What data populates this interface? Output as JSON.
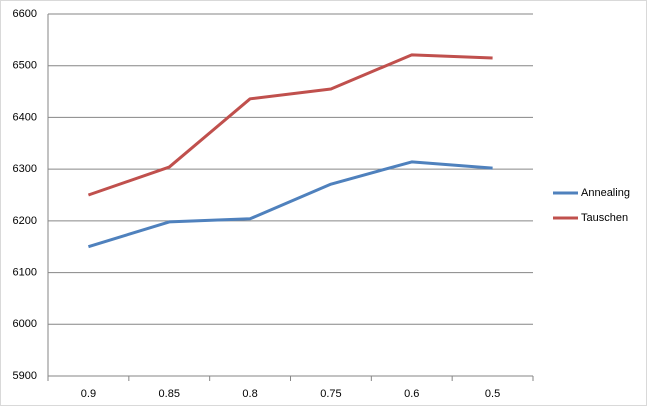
{
  "chart_data": {
    "type": "line",
    "categories": [
      "0.9",
      "0.85",
      "0.8",
      "0.75",
      "0.6",
      "0.5"
    ],
    "series": [
      {
        "name": "Annealing",
        "color": "#4f81bd",
        "values": [
          6150,
          6198,
          6204,
          6271,
          6314,
          6302
        ]
      },
      {
        "name": "Tauschen",
        "color": "#c0504d",
        "values": [
          6250,
          6304,
          6436,
          6455,
          6521,
          6515
        ]
      }
    ],
    "ylim": [
      5900,
      6600
    ],
    "yticks": [
      5900,
      6000,
      6100,
      6200,
      6300,
      6400,
      6500,
      6600
    ],
    "grid": true,
    "legend": "right"
  }
}
